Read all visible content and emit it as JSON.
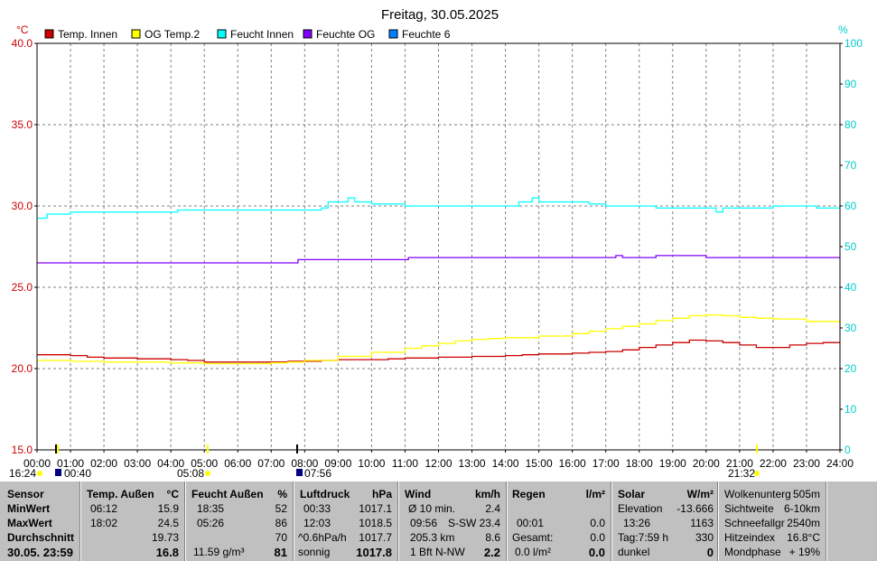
{
  "chart_data": {
    "type": "line",
    "title": "Freitag, 30.05.2025",
    "y_left_unit": "°C",
    "y_right_unit": "%",
    "ylim_left": [
      15.0,
      40.0
    ],
    "ylim_right": [
      0,
      100
    ],
    "y_left_ticks": [
      "15.0",
      "20.0",
      "25.0",
      "30.0",
      "35.0",
      "40.0"
    ],
    "y_right_ticks": [
      "0",
      "10",
      "20",
      "30",
      "40",
      "50",
      "60",
      "70",
      "80",
      "90",
      "100"
    ],
    "x_ticks": [
      "00:00",
      "01:00",
      "02:00",
      "03:00",
      "04:00",
      "05:00",
      "06:00",
      "07:00",
      "08:00",
      "09:00",
      "10:00",
      "11:00",
      "12:00",
      "13:00",
      "14:00",
      "15:00",
      "16:00",
      "17:00",
      "18:00",
      "19:00",
      "20:00",
      "21:00",
      "22:00",
      "23:00",
      "24:00"
    ],
    "grid": true,
    "legend_position": "top",
    "colors": {
      "axis_left": "#cc0000",
      "axis_right": "#00cccc",
      "grid": "#808080"
    },
    "series": [
      {
        "name": "Temp. Innen",
        "color": "#cc0000",
        "axis": "left",
        "x": [
          0,
          0.3,
          1,
          1.5,
          2,
          3,
          4,
          4.5,
          5,
          6,
          7,
          7.5,
          8,
          8.5,
          9,
          10,
          10.5,
          11,
          12,
          13,
          14,
          14.5,
          15,
          16,
          16.5,
          17,
          17.5,
          18,
          18.5,
          19,
          19.5,
          20,
          20.5,
          21,
          21.5,
          22,
          22.5,
          23,
          23.5,
          24
        ],
        "y": [
          20.85,
          20.85,
          20.8,
          20.7,
          20.65,
          20.6,
          20.55,
          20.5,
          20.4,
          20.4,
          20.4,
          20.45,
          20.45,
          20.5,
          20.55,
          20.55,
          20.6,
          20.65,
          20.7,
          20.75,
          20.8,
          20.85,
          20.9,
          20.95,
          21.0,
          21.05,
          21.15,
          21.3,
          21.45,
          21.6,
          21.75,
          21.7,
          21.6,
          21.45,
          21.3,
          21.3,
          21.45,
          21.55,
          21.6,
          21.6
        ]
      },
      {
        "name": "OG Temp.2",
        "color": "#ffff00",
        "axis": "left",
        "x": [
          0,
          1,
          2,
          3,
          4,
          5,
          6,
          7,
          7.5,
          8,
          9,
          10,
          11,
          11.5,
          12,
          12.5,
          13,
          13.5,
          14,
          15,
          16,
          16.5,
          17,
          17.5,
          18,
          18.5,
          19,
          19.5,
          20,
          20.5,
          21,
          21.5,
          22,
          23,
          24
        ],
        "y": [
          20.5,
          20.45,
          20.4,
          20.4,
          20.35,
          20.3,
          20.3,
          20.35,
          20.4,
          20.5,
          20.75,
          21.0,
          21.25,
          21.4,
          21.55,
          21.7,
          21.8,
          21.85,
          21.9,
          22.0,
          22.15,
          22.3,
          22.45,
          22.6,
          22.75,
          22.95,
          23.1,
          23.25,
          23.3,
          23.25,
          23.15,
          23.1,
          23.05,
          22.9,
          22.8
        ]
      },
      {
        "name": "Feucht Innen",
        "color": "#00ffff",
        "axis": "right",
        "x": [
          0,
          0.2,
          0.3,
          0.5,
          1,
          2,
          3,
          4,
          4.2,
          5,
          6,
          7,
          8,
          8.5,
          8.7,
          9,
          9.3,
          9.5,
          10,
          11,
          12,
          13,
          14,
          14.4,
          14.8,
          15,
          16,
          16.5,
          17,
          18,
          18.5,
          19,
          20,
          20.3,
          20.5,
          21,
          21.5,
          22,
          23,
          23.3,
          24
        ],
        "y": [
          57,
          57,
          58,
          58,
          58.5,
          58.5,
          58.5,
          58.5,
          59,
          59,
          59,
          59,
          59,
          59.5,
          61,
          61,
          62,
          61,
          60.5,
          60,
          60,
          60,
          60,
          61,
          62,
          61,
          61,
          60.5,
          60,
          60,
          59.5,
          59.5,
          59.5,
          58.5,
          59.5,
          59.5,
          59.5,
          60,
          60,
          59.5,
          59.5
        ]
      },
      {
        "name": "Feuchte OG",
        "color": "#8000ff",
        "axis": "right",
        "x": [
          0,
          7.7,
          7.8,
          11,
          11.1,
          17,
          17.3,
          17.5,
          18,
          18.5,
          19,
          19.5,
          20,
          24
        ],
        "y": [
          46,
          46,
          46.8,
          46.8,
          47.3,
          47.3,
          47.8,
          47.3,
          47.3,
          47.8,
          47.8,
          47.8,
          47.3,
          47.3
        ]
      },
      {
        "name": "Feuchte 6",
        "color": "#0080ff",
        "axis": "right",
        "x": [],
        "y": []
      }
    ],
    "markers": [
      {
        "label": "16:24",
        "symbol": "sunrise",
        "color": "#ffff00"
      },
      {
        "label": "00:40",
        "symbol": "moonrise",
        "color": "#000080"
      },
      {
        "label": "05:08",
        "symbol": "sun",
        "color": "#ffff00"
      },
      {
        "label": "07:56",
        "symbol": "moon",
        "color": "#000080"
      },
      {
        "label": "21:32",
        "symbol": "sunset",
        "color": "#ffff00"
      }
    ]
  },
  "panel": {
    "sensor": {
      "header": "Sensor",
      "min": "MinWert",
      "max": "MaxWert",
      "avg": "Durchschnitt",
      "date": "30.05. 23:59"
    },
    "temp": {
      "header": "Temp. Außen",
      "unit": "°C",
      "min_time": "06:12",
      "min_val": "15.9",
      "max_time": "18:02",
      "max_val": "24.5",
      "avg_val": "19.73",
      "current": "16.8"
    },
    "feucht": {
      "header": "Feucht Außen",
      "unit": "%",
      "min_time": "18:35",
      "min_val": "52",
      "max_time": "05:26",
      "max_val": "86",
      "avg_val": "70",
      "abs": "11.59 g/m³",
      "current": "81"
    },
    "luft": {
      "header": "Luftdruck",
      "unit": "hPa",
      "min_time": "00:33",
      "min_val": "1017.1",
      "max_time": "12:03",
      "max_val": "1018.5",
      "trend_label": "^0.6hPa/h",
      "trend_val": "1017.7",
      "weather": "sonnig",
      "current": "1017.8"
    },
    "wind": {
      "header": "Wind",
      "unit": "km/h",
      "avg_label": "Ø 10 min.",
      "avg_val": "2.4",
      "gust_time": "09:56",
      "gust_val": "S-SW 23.4",
      "dist_label": "205.3 km",
      "dist_val": "8.6",
      "bft": "1 Bft N-NW",
      "current": "2.2"
    },
    "regen": {
      "header": "Regen",
      "unit": "l/m²",
      "time": "00:01",
      "val1": "0.0",
      "total_label": "Gesamt:",
      "total_val": "0.0",
      "rate": "0.0 l/m²",
      "current": "0.0"
    },
    "solar": {
      "header": "Solar",
      "unit": "W/m²",
      "elev_label": "Elevation",
      "elev_val": "-13.666",
      "max_time": "13:26",
      "max_val": "1163",
      "day_label": "Tag:7:59 h",
      "day_val": "330",
      "state": "dunkel",
      "current": "0"
    },
    "extra": {
      "r1_label": "Wolkenunterg",
      "r1_val": "505m",
      "r2_label": "Sichtweite",
      "r2_val": "6-10km",
      "r3_label": "Schneefallgr",
      "r3_val": "2540m",
      "r4_label": "Hitzeindex",
      "r4_val": "16.8°C",
      "r5_label": "Mondphase",
      "r5_val": "+ 19%"
    }
  }
}
